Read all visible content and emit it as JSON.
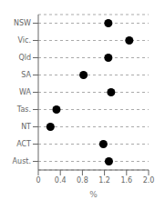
{
  "chart_data": {
    "type": "dot",
    "categories": [
      "NSW",
      "Vic.",
      "Qld",
      "SA",
      "WA",
      "Tas.",
      "NT",
      "ACT",
      "Aust."
    ],
    "values": [
      1.27,
      1.65,
      1.27,
      0.82,
      1.32,
      0.33,
      0.22,
      1.18,
      1.28
    ],
    "xlabel": "%",
    "xlim": [
      0,
      2.0
    ],
    "xticks": [
      0,
      0.4,
      0.8,
      1.2,
      1.6,
      {
        "value": 2.0,
        "label": "2.0"
      }
    ],
    "color": "#000000",
    "grid": true,
    "line_style": "dashed"
  }
}
